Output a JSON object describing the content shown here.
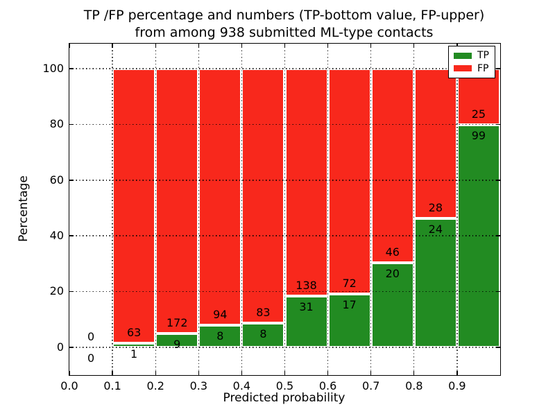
{
  "chart_data": {
    "type": "bar",
    "stacked": true,
    "title_lines": [
      "TP /FP percentage and numbers (TP-bottom value, FP-upper)",
      "from among 938 submitted ML-type contacts"
    ],
    "xlabel": "Predicted probability",
    "ylabel": "Percentage",
    "xlim": [
      0.0,
      1.0
    ],
    "ylim": [
      -10,
      109
    ],
    "xticks": [
      "0.0",
      "0.1",
      "0.2",
      "0.3",
      "0.4",
      "0.5",
      "0.6",
      "0.7",
      "0.8",
      "0.9"
    ],
    "yticks": [
      0,
      20,
      40,
      60,
      80,
      100
    ],
    "grid": {
      "style": "dotted",
      "color": "#000000",
      "over_bars": true
    },
    "bar_width": 0.1,
    "bar_edge_color": "#ffffff",
    "bins": [
      {
        "x0": 0.0,
        "x1": 0.1,
        "tp": 0,
        "fp": 0
      },
      {
        "x0": 0.1,
        "x1": 0.2,
        "tp": 1,
        "fp": 63
      },
      {
        "x0": 0.2,
        "x1": 0.3,
        "tp": 9,
        "fp": 172
      },
      {
        "x0": 0.3,
        "x1": 0.4,
        "tp": 8,
        "fp": 94
      },
      {
        "x0": 0.4,
        "x1": 0.5,
        "tp": 8,
        "fp": 83
      },
      {
        "x0": 0.5,
        "x1": 0.6,
        "tp": 31,
        "fp": 138
      },
      {
        "x0": 0.6,
        "x1": 0.7,
        "tp": 17,
        "fp": 72
      },
      {
        "x0": 0.7,
        "x1": 0.8,
        "tp": 20,
        "fp": 46
      },
      {
        "x0": 0.8,
        "x1": 0.9,
        "tp": 24,
        "fp": 28
      },
      {
        "x0": 0.9,
        "x1": 1.0,
        "tp": 99,
        "fp": 25
      }
    ],
    "series": [
      {
        "name": "TP",
        "color": "#228b22"
      },
      {
        "name": "FP",
        "color": "#f8281c"
      }
    ],
    "legend": {
      "position": "upper right",
      "entries": [
        {
          "label": "TP",
          "color": "#228b22"
        },
        {
          "label": "FP",
          "color": "#f8281c"
        }
      ]
    }
  }
}
